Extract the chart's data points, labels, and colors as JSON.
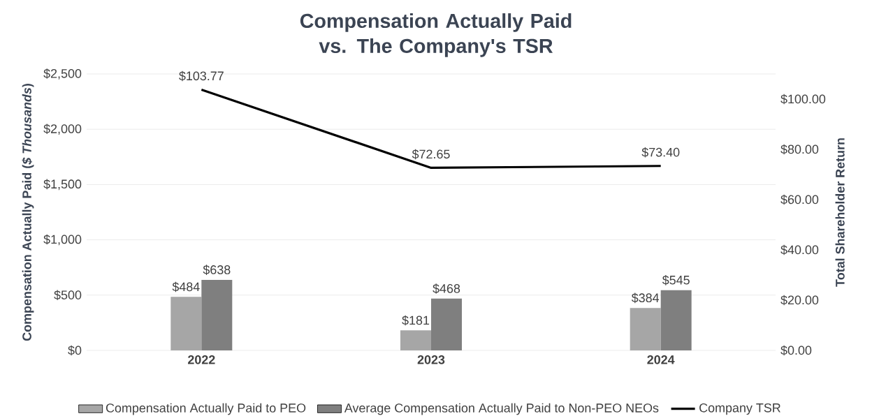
{
  "chart_data": {
    "type": "bar",
    "title": "Compensation Actually Paid vs. The Company's TSR",
    "categories": [
      "2022",
      "2023",
      "2024"
    ],
    "series": [
      {
        "name": "Compensation Actually Paid to PEO",
        "color": "#a6a6a6",
        "values": [
          484,
          181,
          384
        ],
        "value_labels": [
          "$484",
          "$181",
          "$384"
        ]
      },
      {
        "name": "Average Compensation Actually Paid to Non-PEO NEOs",
        "color": "#7f7f7f",
        "values": [
          638,
          468,
          545
        ],
        "value_labels": [
          "$638",
          "$468",
          "$545"
        ]
      },
      {
        "name": "Company TSR",
        "type": "line",
        "axis": "y2",
        "color": "#000000",
        "values": [
          103.77,
          72.65,
          73.4
        ],
        "value_labels": [
          "$103.77",
          "$72.65",
          "$73.40"
        ]
      }
    ],
    "ylabel": "Compensation Actually Paid (*$ Thousands*)",
    "y2label": "Total Shareholder Return",
    "ylim": [
      0,
      2500
    ],
    "yticks": [
      {
        "value": 0,
        "label": "$0"
      },
      {
        "value": 500,
        "label": "$500"
      },
      {
        "value": 1000,
        "label": "$1,000"
      },
      {
        "value": 1500,
        "label": "$1,500"
      },
      {
        "value": 2000,
        "label": "$2,000"
      },
      {
        "value": 2500,
        "label": "$2,500"
      }
    ],
    "y2lim": [
      0,
      110
    ],
    "y2ticks": [
      {
        "value": 0,
        "label": "$0.00"
      },
      {
        "value": 20,
        "label": "$20.00"
      },
      {
        "value": 40,
        "label": "$40.00"
      },
      {
        "value": 60,
        "label": "$60.00"
      },
      {
        "value": 80,
        "label": "$80.00"
      },
      {
        "value": 100,
        "label": "$100.00"
      }
    ],
    "grid": "y",
    "legend": "bottom"
  }
}
